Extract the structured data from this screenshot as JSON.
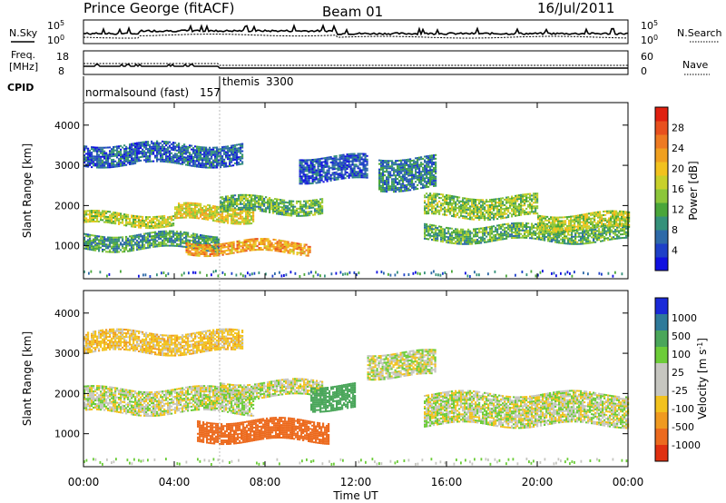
{
  "header": {
    "station": "Prince George (fitACF)",
    "beam": "Beam 01",
    "date": "16/Jul/2011"
  },
  "top_panels": {
    "nsky_label": "N.Sky",
    "nsearch_label": "N.Search",
    "freq_label_1": "Freq.",
    "freq_label_2": "[MHz]",
    "nave_label": "Nave",
    "cpid_label": "CPID",
    "noise_left_ticks": [
      "10^5",
      "10^0"
    ],
    "noise_right_ticks": [
      "10^5",
      "10^0"
    ],
    "freq_left_ticks": [
      "18",
      "8"
    ],
    "nave_right_ticks": [
      "60",
      "0"
    ],
    "cpid_programs": [
      {
        "name": "normalsound (fast)",
        "id": "157",
        "start_hour": 0
      },
      {
        "name": "themis",
        "id": "3300",
        "start_hour": 6
      }
    ]
  },
  "chart_data": [
    {
      "type": "heatmap",
      "name": "power",
      "xlabel": "",
      "ylabel": "Slant Range [km]",
      "xlim_hours": [
        0,
        24
      ],
      "ylim_km": [
        180,
        4560
      ],
      "y_ticks": [
        1000,
        2000,
        3000,
        4000
      ],
      "colorbar_label": "Power [dB]",
      "colorbar_ticks": [
        "4",
        "8",
        "12",
        "16",
        "20",
        "24",
        "28"
      ],
      "colors": [
        "#1010e0",
        "#1e40c8",
        "#2e6aa8",
        "#35917a",
        "#4aa63a",
        "#8cc63a",
        "#c8d02a",
        "#f2c21e",
        "#f0a020",
        "#ee7a22",
        "#e8501e",
        "#e02010"
      ],
      "echo_bands": [
        {
          "h0": 0.0,
          "h1": 4.0,
          "r0": 1500,
          "r1": 1800,
          "level": 16
        },
        {
          "h0": 4.0,
          "h1": 7.5,
          "r0": 1600,
          "r1": 2000,
          "level": 18
        },
        {
          "h0": 0.0,
          "h1": 6.0,
          "r0": 900,
          "r1": 1300,
          "level": 10
        },
        {
          "h0": 4.5,
          "h1": 10.0,
          "r0": 800,
          "r1": 1100,
          "level": 22
        },
        {
          "h0": 6.0,
          "h1": 10.5,
          "r0": 1800,
          "r1": 2200,
          "level": 12
        },
        {
          "h0": 13.0,
          "h1": 15.5,
          "r0": 2400,
          "r1": 3200,
          "level": 8
        },
        {
          "h0": 15.0,
          "h1": 20.0,
          "r0": 1700,
          "r1": 2200,
          "level": 14
        },
        {
          "h0": 15.0,
          "h1": 24.0,
          "r0": 1100,
          "r1": 1500,
          "level": 12
        },
        {
          "h0": 20.0,
          "h1": 24.0,
          "r0": 1400,
          "r1": 1800,
          "level": 16
        },
        {
          "h0": 0.0,
          "h1": 7.0,
          "r0": 3000,
          "r1": 3500,
          "level": 6
        },
        {
          "h0": 9.5,
          "h1": 12.5,
          "r0": 2600,
          "r1": 3200,
          "level": 5
        }
      ]
    },
    {
      "type": "heatmap",
      "name": "velocity",
      "xlabel": "Time UT",
      "ylabel": "Slant Range [km]",
      "xlim_hours": [
        0,
        24
      ],
      "x_ticks": [
        "00:00",
        "04:00",
        "08:00",
        "12:00",
        "16:00",
        "20:00",
        "00:00"
      ],
      "ylim_km": [
        180,
        4560
      ],
      "y_ticks": [
        1000,
        2000,
        3000,
        4000
      ],
      "colorbar_label": "Velocity [m s^-1]",
      "colorbar_ticks": [
        "1000",
        "500",
        "100",
        "25",
        "-25",
        "-100",
        "-500",
        "-1000"
      ],
      "colors": [
        "#1a2ad8",
        "#2f7a9a",
        "#4aa65a",
        "#6ccc38",
        "#c6c6c0",
        "#c6c6c0",
        "#f2c21e",
        "#f09a20",
        "#ec6a1e",
        "#e03010"
      ],
      "echo_bands": [
        {
          "h0": 0.0,
          "h1": 7.5,
          "r0": 1500,
          "r1": 2100,
          "level": 0
        },
        {
          "h0": 6.0,
          "h1": 10.5,
          "r0": 1900,
          "r1": 2300,
          "level": 0
        },
        {
          "h0": 5.0,
          "h1": 10.8,
          "r0": 800,
          "r1": 1300,
          "level": -400
        },
        {
          "h0": 10.0,
          "h1": 12.0,
          "r0": 1600,
          "r1": 2200,
          "level": 200
        },
        {
          "h0": 15.0,
          "h1": 24.0,
          "r0": 1200,
          "r1": 2000,
          "level": 0
        },
        {
          "h0": 0.0,
          "h1": 7.0,
          "r0": 3000,
          "r1": 3500,
          "level": -60
        },
        {
          "h0": 12.5,
          "h1": 15.5,
          "r0": 2400,
          "r1": 3000,
          "level": 0
        }
      ]
    }
  ]
}
